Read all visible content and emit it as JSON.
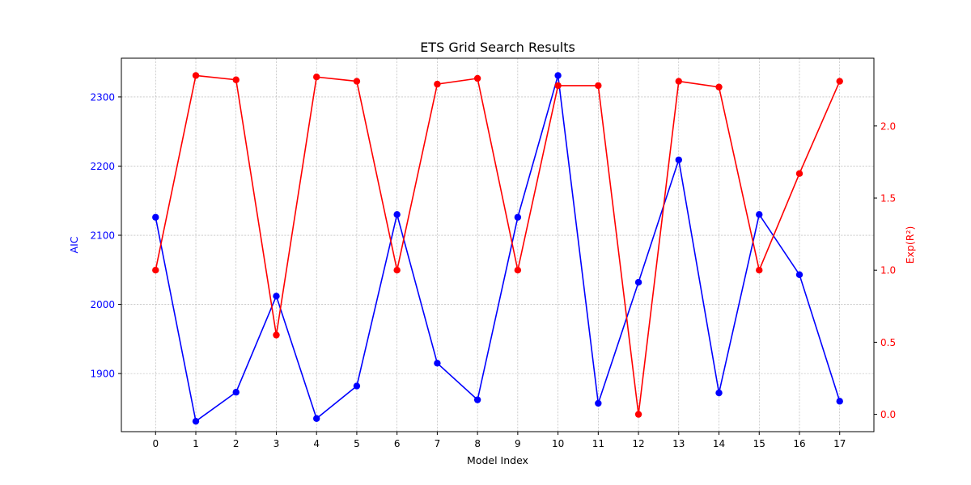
{
  "chart_data": {
    "type": "line",
    "title": "ETS Grid Search Results",
    "xlabel": "Model Index",
    "ylabel_left": "AIC",
    "ylabel_right": "Exp(R²)",
    "x": [
      0,
      1,
      2,
      3,
      4,
      5,
      6,
      7,
      8,
      9,
      10,
      11,
      12,
      13,
      14,
      15,
      16,
      17
    ],
    "xticks": [
      "0",
      "1",
      "2",
      "3",
      "4",
      "5",
      "6",
      "7",
      "8",
      "9",
      "10",
      "11",
      "12",
      "13",
      "14",
      "15",
      "16",
      "17"
    ],
    "xlim": [
      -0.85,
      17.85
    ],
    "left_axis": {
      "ylim": [
        1816,
        2356
      ],
      "ticks": [
        1900,
        2000,
        2100,
        2200,
        2300
      ],
      "tick_labels": [
        "1900",
        "2000",
        "2100",
        "2200",
        "2300"
      ],
      "color": "#0000ff"
    },
    "right_axis": {
      "ylim": [
        -0.12,
        2.47
      ],
      "ticks": [
        0.0,
        0.5,
        1.0,
        1.5,
        2.0
      ],
      "tick_labels": [
        "0.0",
        "0.5",
        "1.0",
        "1.5",
        "2.0"
      ],
      "color": "#ff0000"
    },
    "grid": true,
    "series": [
      {
        "axis": "left",
        "color": "#0000ff",
        "values": [
          2126,
          1831,
          1873,
          2012,
          1835,
          1882,
          2130,
          1915,
          1862,
          2126,
          2331,
          1857,
          2032,
          2209,
          1872,
          2130,
          2043,
          1860
        ]
      },
      {
        "axis": "right",
        "color": "#ff0000",
        "values": [
          1.0,
          2.35,
          2.32,
          0.55,
          2.34,
          2.31,
          1.0,
          2.29,
          2.33,
          1.0,
          2.28,
          2.28,
          0.0,
          2.31,
          2.27,
          1.0,
          1.67,
          2.31
        ]
      }
    ]
  }
}
